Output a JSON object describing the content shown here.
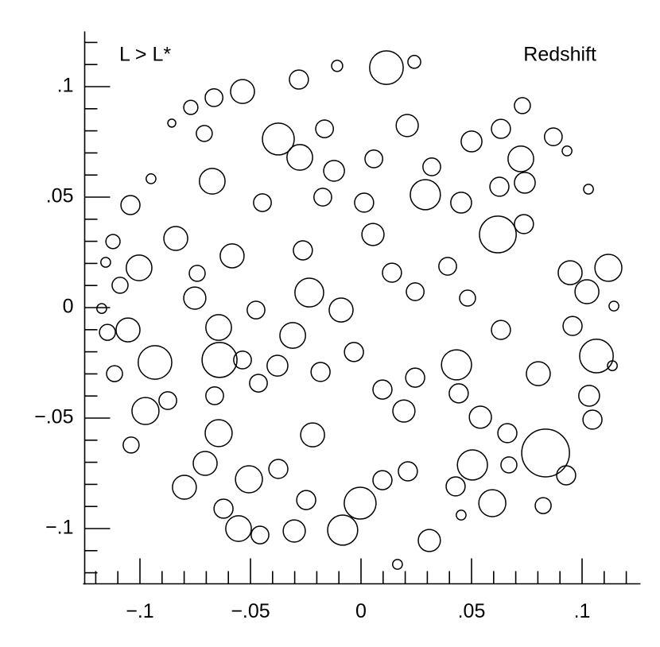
{
  "chart_data": {
    "type": "bubble",
    "annotation_left": "L > L*",
    "annotation_right": "Redshift",
    "color": "#000000",
    "size_unit": "radius in axis units",
    "xlim": [
      -0.125,
      0.125
    ],
    "ylim": [
      -0.125,
      0.125
    ],
    "xticks": [
      {
        "value": -0.1,
        "label": "−.1"
      },
      {
        "value": -0.05,
        "label": "−.05"
      },
      0,
      {
        "value": 0.05,
        "label": ".05"
      },
      {
        "value": 0.1,
        "label": ".1"
      }
    ],
    "yticks": [
      {
        "value": -0.1,
        "label": "−.1"
      },
      {
        "value": -0.05,
        "label": "−.05"
      },
      0,
      {
        "value": 0.05,
        "label": ".05"
      },
      {
        "value": 0.1,
        "label": ".1"
      }
    ],
    "xminorticks": [
      -0.12,
      -0.11,
      -0.09,
      -0.08,
      -0.07,
      -0.06,
      -0.04,
      -0.03,
      -0.02,
      -0.01,
      0.01,
      0.02,
      0.03,
      0.04,
      0.06,
      0.07,
      0.08,
      0.09,
      0.11,
      0.12
    ],
    "yminorticks": [
      -0.12,
      -0.11,
      -0.09,
      -0.08,
      -0.07,
      -0.06,
      -0.04,
      -0.03,
      -0.02,
      -0.01,
      0.01,
      0.02,
      0.03,
      0.04,
      0.06,
      0.07,
      0.08,
      0.09,
      0.11,
      0.12
    ],
    "x": [
      0.0115,
      -0.0536,
      -0.0281,
      -0.0665,
      -0.0374,
      -0.0277,
      -0.0673,
      0.0291,
      0.0619,
      0.0723,
      0.0741,
      -0.0583,
      -0.1004,
      0.1119,
      -0.0234,
      -0.0752,
      -0.009,
      -0.0644,
      -0.0309,
      -0.1054,
      -0.0932,
      -0.064,
      -0.0378,
      0.0432,
      0.1065,
      0.0802,
      -0.0975,
      -0.0644,
      -0.0219,
      0.0194,
      0.054,
      0.0835,
      0.0504,
      -0.0799,
      -0.0507,
      -0.0004,
      0.0594,
      -0.0554,
      -0.0083,
      -0.0302,
      0.0309,
      0.1022,
      0.0946,
      0.1032,
      0.1047,
      0.0054,
      0.0453,
      -0.0838,
      -0.1043,
      -0.0122,
      0.0209,
      0.05,
      0.0626,
      0.0737,
      0.087,
      0.073,
      0.0633,
      0.0014,
      -0.0263,
      0.014,
      0.0245,
      -0.0032,
      -0.0183,
      0.0097,
      0.0245,
      0.0442,
      0.0633,
      0.0957,
      0.0662,
      0.0928,
      -0.0705,
      -0.104,
      -0.0464,
      -0.0374,
      0.0097,
      0.0428,
      0.0212,
      -0.0248,
      -0.0457,
      -0.0622,
      0.0669,
      0.0824,
      -0.0874,
      -0.1115,
      -0.109,
      -0.1122,
      -0.1147,
      -0.0662,
      -0.0536,
      -0.0475,
      -0.0741,
      -0.0446,
      -0.0173,
      0.0058,
      -0.0165,
      -0.0709,
      -0.077,
      0.032,
      0.0392,
      0.0482,
      -0.0108,
      0.0241,
      -0.0856,
      -0.095,
      -0.1155,
      -0.1173,
      0.0165,
      0.0453,
      0.1137,
      0.1144,
      0.1029,
      0.0932
    ],
    "values": [
      0.1086,
      0.0978,
      0.1032,
      0.095,
      0.0763,
      0.068,
      0.0572,
      0.0511,
      0.0331,
      0.0673,
      0.0565,
      0.0234,
      0.018,
      0.018,
      0.0068,
      0.0043,
      -0.0011,
      -0.009,
      -0.0126,
      -0.0101,
      -0.0248,
      -0.0237,
      -0.0263,
      -0.0259,
      -0.0219,
      -0.0299,
      -0.0468,
      -0.0568,
      -0.0576,
      -0.0468,
      -0.0496,
      -0.0658,
      -0.0712,
      -0.0813,
      -0.0777,
      -0.0885,
      -0.0885,
      -0.1,
      -0.1007,
      -0.1011,
      -0.1054,
      0.0072,
      0.0158,
      -0.0399,
      -0.0507,
      0.0331,
      0.0475,
      0.0313,
      0.0464,
      0.0619,
      0.0824,
      0.0752,
      0.0547,
      0.0378,
      0.0773,
      0.0914,
      0.0809,
      0.0475,
      0.0259,
      0.0158,
      0.0072,
      -0.0201,
      -0.0291,
      -0.0371,
      -0.0317,
      -0.0388,
      -0.0101,
      -0.0083,
      -0.0568,
      -0.0759,
      -0.0705,
      -0.0622,
      -0.0342,
      -0.073,
      -0.0781,
      -0.0809,
      -0.0741,
      -0.0871,
      -0.1029,
      -0.091,
      -0.0712,
      -0.0896,
      -0.0421,
      -0.0299,
      0.0101,
      0.0299,
      -0.0112,
      -0.0399,
      -0.0237,
      -0.0011,
      0.0155,
      0.0475,
      0.05,
      0.0673,
      0.0809,
      0.0788,
      0.0906,
      0.0637,
      0.0187,
      0.0043,
      0.1094,
      0.1112,
      0.0835,
      0.0583,
      0.0205,
      -0.0004,
      -0.1162,
      -0.0939,
      -0.0263,
      0.0007,
      0.0536,
      0.0709
    ],
    "sizes": [
      0.0076,
      0.0054,
      0.0043,
      0.004,
      0.0072,
      0.0058,
      0.0058,
      0.0068,
      0.0083,
      0.0058,
      0.0047,
      0.0054,
      0.0058,
      0.0061,
      0.0065,
      0.005,
      0.0054,
      0.0058,
      0.0058,
      0.0054,
      0.0076,
      0.0079,
      0.0047,
      0.0068,
      0.0076,
      0.0054,
      0.0061,
      0.0061,
      0.0054,
      0.005,
      0.005,
      0.0108,
      0.0068,
      0.0054,
      0.0061,
      0.0072,
      0.0061,
      0.0058,
      0.0068,
      0.005,
      0.005,
      0.0054,
      0.0054,
      0.0047,
      0.0043,
      0.005,
      0.0047,
      0.0054,
      0.0043,
      0.0047,
      0.005,
      0.0047,
      0.0043,
      0.0043,
      0.004,
      0.0036,
      0.0043,
      0.0043,
      0.0043,
      0.0043,
      0.004,
      0.0043,
      0.0043,
      0.0043,
      0.0043,
      0.0043,
      0.0043,
      0.0043,
      0.0043,
      0.0043,
      0.0054,
      0.0036,
      0.004,
      0.0043,
      0.0043,
      0.0043,
      0.0043,
      0.0043,
      0.004,
      0.0043,
      0.0036,
      0.0036,
      0.004,
      0.0036,
      0.0036,
      0.0032,
      0.0036,
      0.004,
      0.004,
      0.004,
      0.0036,
      0.004,
      0.004,
      0.004,
      0.004,
      0.0036,
      0.0032,
      0.004,
      0.004,
      0.0036,
      0.0025,
      0.0029,
      0.0018,
      0.0022,
      0.0022,
      0.0022,
      0.0022,
      0.0022,
      0.0022,
      0.0022,
      0.0022,
      0.0022
    ]
  }
}
